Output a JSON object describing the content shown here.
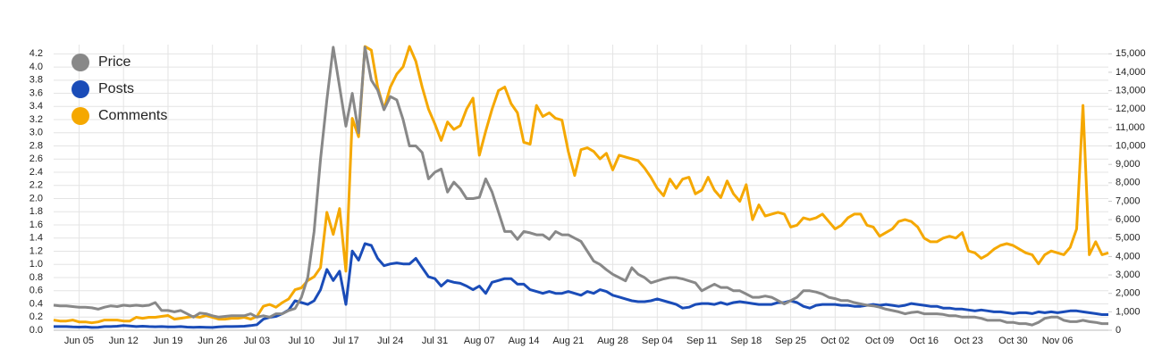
{
  "chart_data": {
    "type": "line",
    "categories": [
      null,
      null,
      null,
      null,
      "Jun 05",
      null,
      null,
      null,
      null,
      null,
      null,
      "Jun 12",
      null,
      null,
      null,
      null,
      null,
      null,
      "Jun 19",
      null,
      null,
      null,
      null,
      null,
      null,
      "Jun 26",
      null,
      null,
      null,
      null,
      null,
      null,
      "Jul 03",
      null,
      null,
      null,
      null,
      null,
      null,
      "Jul 10",
      null,
      null,
      null,
      null,
      null,
      null,
      "Jul 17",
      null,
      null,
      null,
      null,
      null,
      null,
      "Jul 24",
      null,
      null,
      null,
      null,
      null,
      null,
      "Jul 31",
      null,
      null,
      null,
      null,
      null,
      null,
      "Aug 07",
      null,
      null,
      null,
      null,
      null,
      null,
      "Aug 14",
      null,
      null,
      null,
      null,
      null,
      null,
      "Aug 21",
      null,
      null,
      null,
      null,
      null,
      null,
      "Aug 28",
      null,
      null,
      null,
      null,
      null,
      null,
      "Sep 04",
      null,
      null,
      null,
      null,
      null,
      null,
      "Sep 11",
      null,
      null,
      null,
      null,
      null,
      null,
      "Sep 18",
      null,
      null,
      null,
      null,
      null,
      null,
      "Sep 25",
      null,
      null,
      null,
      null,
      null,
      null,
      "Oct 02",
      null,
      null,
      null,
      null,
      null,
      null,
      "Oct 09",
      null,
      null,
      null,
      null,
      null,
      null,
      "Oct 16",
      null,
      null,
      null,
      null,
      null,
      null,
      "Oct 23",
      null,
      null,
      null,
      null,
      null,
      null,
      "Oct 30",
      null,
      null,
      null,
      null,
      null,
      null,
      "Nov 06",
      null,
      null,
      null,
      null,
      null,
      null,
      null,
      null
    ],
    "series": [
      {
        "name": "Price",
        "color": "#888888",
        "axis": "y",
        "values": [
          0.38,
          0.37,
          0.37,
          0.36,
          0.35,
          0.35,
          0.34,
          0.32,
          0.35,
          0.37,
          0.36,
          0.38,
          0.37,
          0.38,
          0.37,
          0.38,
          0.42,
          0.3,
          0.3,
          0.28,
          0.3,
          0.25,
          0.2,
          0.26,
          0.25,
          0.22,
          0.2,
          0.21,
          0.22,
          0.22,
          0.22,
          0.25,
          0.2,
          0.22,
          0.2,
          0.25,
          0.25,
          0.3,
          0.33,
          0.5,
          0.8,
          1.5,
          2.6,
          3.5,
          4.3,
          3.7,
          3.1,
          3.6,
          3.0,
          4.3,
          3.8,
          3.65,
          3.35,
          3.55,
          3.5,
          3.2,
          2.8,
          2.8,
          2.7,
          2.3,
          2.4,
          2.45,
          2.1,
          2.25,
          2.15,
          2.0,
          2.0,
          2.02,
          2.3,
          2.1,
          1.8,
          1.5,
          1.5,
          1.38,
          1.5,
          1.48,
          1.45,
          1.45,
          1.38,
          1.5,
          1.45,
          1.45,
          1.4,
          1.35,
          1.2,
          1.05,
          1.0,
          0.92,
          0.85,
          0.8,
          0.75,
          0.95,
          0.85,
          0.8,
          0.72,
          0.75,
          0.78,
          0.8,
          0.8,
          0.78,
          0.75,
          0.72,
          0.6,
          0.65,
          0.7,
          0.65,
          0.65,
          0.6,
          0.6,
          0.55,
          0.5,
          0.5,
          0.52,
          0.5,
          0.45,
          0.4,
          0.45,
          0.5,
          0.6,
          0.6,
          0.58,
          0.55,
          0.5,
          0.48,
          0.45,
          0.45,
          0.42,
          0.4,
          0.38,
          0.37,
          0.35,
          0.32,
          0.3,
          0.28,
          0.25,
          0.27,
          0.28,
          0.25,
          0.25,
          0.25,
          0.24,
          0.22,
          0.22,
          0.2,
          0.2,
          0.2,
          0.18,
          0.15,
          0.15,
          0.15,
          0.12,
          0.12,
          0.1,
          0.1,
          0.08,
          0.12,
          0.18,
          0.2,
          0.2,
          0.15,
          0.13,
          0.13,
          0.15,
          0.13,
          0.12,
          0.1,
          0.1
        ]
      },
      {
        "name": "Posts",
        "color": "#1a4cb8",
        "axis": "y2",
        "values": [
          200,
          200,
          200,
          180,
          170,
          180,
          150,
          160,
          200,
          200,
          220,
          250,
          230,
          200,
          220,
          200,
          190,
          200,
          180,
          180,
          200,
          170,
          160,
          170,
          160,
          150,
          180,
          200,
          200,
          210,
          220,
          250,
          300,
          600,
          700,
          750,
          900,
          1100,
          1600,
          1500,
          1400,
          1600,
          2200,
          3300,
          2700,
          3200,
          1400,
          4300,
          3800,
          4700,
          4600,
          3900,
          3500,
          3600,
          3650,
          3600,
          3600,
          3900,
          3400,
          2900,
          2800,
          2400,
          2700,
          2600,
          2550,
          2400,
          2200,
          2400,
          2000,
          2600,
          2700,
          2800,
          2800,
          2500,
          2500,
          2200,
          2100,
          2000,
          2100,
          2000,
          2000,
          2100,
          2000,
          1900,
          2100,
          2000,
          2200,
          2100,
          1900,
          1800,
          1700,
          1600,
          1550,
          1550,
          1600,
          1700,
          1600,
          1500,
          1400,
          1200,
          1250,
          1400,
          1450,
          1450,
          1400,
          1500,
          1400,
          1500,
          1550,
          1500,
          1450,
          1400,
          1400,
          1400,
          1500,
          1500,
          1600,
          1500,
          1300,
          1200,
          1350,
          1400,
          1400,
          1400,
          1350,
          1350,
          1300,
          1300,
          1350,
          1400,
          1350,
          1400,
          1350,
          1300,
          1350,
          1450,
          1400,
          1350,
          1300,
          1300,
          1200,
          1200,
          1150,
          1150,
          1100,
          1050,
          1100,
          1050,
          1000,
          1000,
          950,
          900,
          950,
          950,
          900,
          1000,
          950,
          1000,
          950,
          1000,
          1050,
          1050,
          1000,
          950,
          900,
          850,
          850
        ]
      },
      {
        "name": "Comments",
        "color": "#f5a800",
        "axis": "y2",
        "values": [
          550,
          500,
          500,
          550,
          450,
          450,
          400,
          450,
          550,
          550,
          550,
          500,
          500,
          700,
          650,
          700,
          700,
          750,
          800,
          600,
          650,
          700,
          750,
          700,
          800,
          700,
          600,
          600,
          650,
          650,
          700,
          600,
          750,
          1300,
          1400,
          1250,
          1500,
          1700,
          2200,
          2300,
          2700,
          2900,
          3400,
          6400,
          5200,
          6600,
          3200,
          11500,
          10500,
          15400,
          15200,
          13200,
          12000,
          13200,
          13900,
          14300,
          15400,
          14600,
          13200,
          12000,
          11200,
          10300,
          11300,
          10900,
          11100,
          12000,
          12600,
          9500,
          10800,
          12000,
          13000,
          13200,
          12300,
          11800,
          10200,
          10100,
          12200,
          11600,
          11800,
          11500,
          11400,
          9700,
          8400,
          9800,
          9900,
          9700,
          9300,
          9600,
          8700,
          9500,
          9400,
          9300,
          9200,
          8800,
          8300,
          7700,
          7300,
          8200,
          7700,
          8200,
          8300,
          7400,
          7600,
          8300,
          7600,
          7200,
          8100,
          7400,
          7000,
          7900,
          6000,
          6800,
          6200,
          6300,
          6400,
          6300,
          5600,
          5700,
          6100,
          6000,
          6100,
          6300,
          5900,
          5500,
          5700,
          6100,
          6300,
          6300,
          5700,
          5600,
          5100,
          5300,
          5500,
          5900,
          6000,
          5900,
          5600,
          5000,
          4800,
          4800,
          5000,
          5100,
          5000,
          5300,
          4300,
          4200,
          3900,
          4100,
          4400,
          4600,
          4700,
          4600,
          4400,
          4200,
          4100,
          3600,
          4100,
          4300,
          4200,
          4100,
          4500,
          5500,
          12200,
          4100,
          4800,
          4100,
          4200
        ]
      }
    ],
    "ylim": [
      0,
      4.34
    ],
    "yticks": [
      {
        "value": 0,
        "label": "0.0"
      },
      0.2,
      0.4,
      0.6,
      0.8,
      {
        "value": 1,
        "label": "1.0"
      },
      1.2,
      1.4,
      1.6,
      1.8,
      {
        "value": 2,
        "label": "2.0"
      },
      2.2,
      2.4,
      2.6,
      2.8,
      {
        "value": 3,
        "label": "3.0"
      },
      3.2,
      3.4,
      3.6,
      3.8,
      {
        "value": 4,
        "label": "4.0"
      },
      4.2
    ],
    "y2lim": [
      0,
      15500
    ],
    "y2ticks": [
      0,
      {
        "value": 1000,
        "label": "1,000"
      },
      {
        "value": 2000,
        "label": "2,000"
      },
      {
        "value": 3000,
        "label": "3,000"
      },
      {
        "value": 4000,
        "label": "4,000"
      },
      {
        "value": 5000,
        "label": "5,000"
      },
      {
        "value": 6000,
        "label": "6,000"
      },
      {
        "value": 7000,
        "label": "7,000"
      },
      {
        "value": 8000,
        "label": "8,000"
      },
      {
        "value": 9000,
        "label": "9,000"
      },
      {
        "value": 10000,
        "label": "10,000"
      },
      {
        "value": 11000,
        "label": "11,000"
      },
      {
        "value": 12000,
        "label": "12,000"
      },
      {
        "value": 13000,
        "label": "13,000"
      },
      {
        "value": 14000,
        "label": "14,000"
      },
      {
        "value": 15000,
        "label": "15,000"
      }
    ],
    "grid": true,
    "legend": "top-left"
  }
}
